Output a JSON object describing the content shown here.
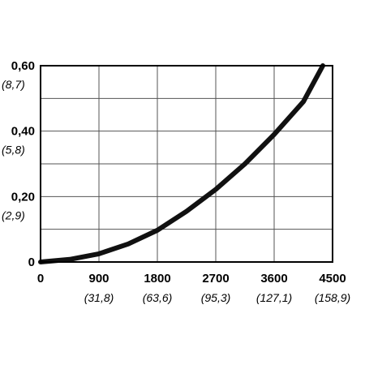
{
  "chart_data": {
    "type": "line",
    "title": "",
    "xlabel": "",
    "ylabel": "",
    "xlim": [
      0,
      4500
    ],
    "ylim": [
      0,
      0.6
    ],
    "grid": true,
    "x_ticks": [
      {
        "value": 0,
        "label": "0",
        "sub": ""
      },
      {
        "value": 900,
        "label": "900",
        "sub": "(31,8)"
      },
      {
        "value": 1800,
        "label": "1800",
        "sub": "(63,6)"
      },
      {
        "value": 2700,
        "label": "2700",
        "sub": "(95,3)"
      },
      {
        "value": 3600,
        "label": "3600",
        "sub": "(127,1)"
      },
      {
        "value": 4500,
        "label": "4500",
        "sub": "(158,9)"
      }
    ],
    "y_ticks": [
      {
        "value": 0,
        "label": "0",
        "sub": ""
      },
      {
        "value": 0.2,
        "label": "0,20",
        "sub": "(2,9)"
      },
      {
        "value": 0.4,
        "label": "0,40",
        "sub": "(5,8)"
      },
      {
        "value": 0.6,
        "label": "0,60",
        "sub": "(8,7)"
      }
    ],
    "x_gridlines": [
      900,
      1800,
      2700,
      3600
    ],
    "y_gridlines": [
      0.1,
      0.2,
      0.3,
      0.4,
      0.5
    ],
    "series": [
      {
        "color": "#111111",
        "x": [
          0,
          450,
          900,
          1350,
          1800,
          2250,
          2700,
          3150,
          3600,
          4050,
          4350
        ],
        "y": [
          0,
          0.008,
          0.025,
          0.055,
          0.097,
          0.155,
          0.222,
          0.3,
          0.39,
          0.49,
          0.6
        ]
      }
    ]
  }
}
